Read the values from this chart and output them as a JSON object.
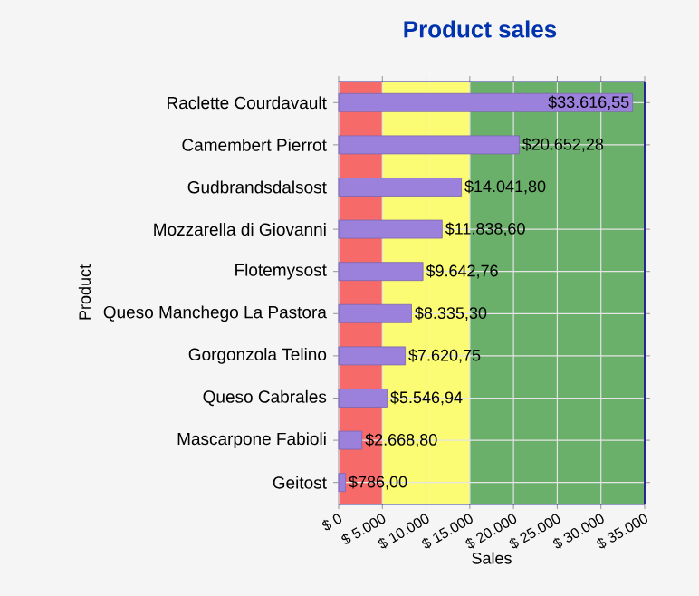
{
  "chart_data": {
    "type": "bar",
    "orientation": "horizontal",
    "title": "Product sales",
    "xlabel": "Sales",
    "ylabel": "Product",
    "categories": [
      "Raclette Courdavault",
      "Camembert Pierrot",
      "Gudbrandsdalsost",
      "Mozzarella di Giovanni",
      "Flotemysost",
      "Queso Manchego La Pastora",
      "Gorgonzola Telino",
      "Queso Cabrales",
      "Mascarpone Fabioli",
      "Geitost"
    ],
    "values": [
      33616.55,
      20652.28,
      14041.8,
      11838.6,
      9642.76,
      8335.3,
      7620.75,
      5546.94,
      2668.8,
      786.0
    ],
    "value_labels": [
      "$33.616,55",
      "$20.652,28",
      "$14.041,80",
      "$11.838,60",
      "$9.642,76",
      "$8.335,30",
      "$7.620,75",
      "$5.546,94",
      "$2.668,80",
      "$786,00"
    ],
    "color": "#9b80dc",
    "xlim": [
      0,
      35000
    ],
    "xticks": [
      {
        "value": 0,
        "label": "$ 0"
      },
      {
        "value": 5000,
        "label": "$ 5.000"
      },
      {
        "value": 10000,
        "label": "$ 10.000"
      },
      {
        "value": 15000,
        "label": "$ 15.000"
      },
      {
        "value": 20000,
        "label": "$ 20.000"
      },
      {
        "value": 25000,
        "label": "$ 25.000"
      },
      {
        "value": 30000,
        "label": "$ 30.000"
      },
      {
        "value": 35000,
        "label": "$ 35.000"
      }
    ],
    "bands": [
      {
        "axis": "x",
        "from": 0,
        "to": 5000,
        "color": "#f76a6a"
      },
      {
        "axis": "x",
        "from": 5000,
        "to": 15000,
        "color": "#fbfb74"
      },
      {
        "axis": "x",
        "from": 15000,
        "to": 35000,
        "color": "#6aaf6a"
      }
    ],
    "grid": true
  }
}
